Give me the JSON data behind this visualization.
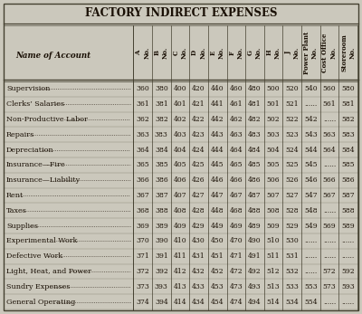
{
  "title": "FACTORY INDIRECT EXPENSES",
  "short_headers": [
    "A\nNo.",
    "B\nNo.",
    "C\nNo.",
    "D\nNo.",
    "E\nNo.",
    "F\nNo.",
    "G\nNo.",
    "H\nNo.",
    "J\nNo."
  ],
  "long_headers": [
    "Power Plant\nNo.",
    "Cost Office\nNo.",
    "Storeroom\nNo."
  ],
  "rows": [
    [
      "Supervision",
      "360",
      "380",
      "400",
      "420",
      "440",
      "460",
      "480",
      "500",
      "520",
      "540",
      "560",
      "580"
    ],
    [
      "Clerks’ Salaries",
      "361",
      "381",
      "401",
      "421",
      "441",
      "461",
      "481",
      "501",
      "521",
      "......",
      "561",
      "581"
    ],
    [
      "Non-Productive Labor",
      "362",
      "382",
      "402",
      "422",
      "442",
      "462",
      "482",
      "502",
      "522",
      "542",
      "......",
      "582"
    ],
    [
      "Repairs",
      "363",
      "383",
      "403",
      "423",
      "443",
      "463",
      "483",
      "503",
      "523",
      "543",
      "563",
      "583"
    ],
    [
      "Depreciation",
      "364",
      "384",
      "404",
      "424",
      "444",
      "464",
      "484",
      "504",
      "524",
      "544",
      "564",
      "584"
    ],
    [
      "Insurance—Fire",
      "365",
      "385",
      "405",
      "425",
      "445",
      "465",
      "485",
      "505",
      "525",
      "545",
      "......",
      "585"
    ],
    [
      "Insurance—Liability",
      "366",
      "386",
      "406",
      "426",
      "446",
      "466",
      "486",
      "506",
      "526",
      "546",
      "566",
      "586"
    ],
    [
      "Rent",
      "367",
      "387",
      "407",
      "427",
      "447",
      "467",
      "487",
      "507",
      "527",
      "547",
      "567",
      "587"
    ],
    [
      "Taxes",
      "368",
      "388",
      "408",
      "428",
      "448",
      "468",
      "488",
      "508",
      "528",
      "548",
      "......",
      "588"
    ],
    [
      "Supplies",
      "369",
      "389",
      "409",
      "429",
      "449",
      "469",
      "489",
      "509",
      "529",
      "549",
      "569",
      "589"
    ],
    [
      "Experimental Work",
      "370",
      "390",
      "410",
      "430",
      "450",
      "470",
      "490",
      "510",
      "530",
      "......",
      "......",
      "......"
    ],
    [
      "Defective Work",
      "371",
      "391",
      "411",
      "431",
      "451",
      "471",
      "491",
      "511",
      "531",
      "......",
      "......",
      "......"
    ],
    [
      "Light, Heat, and Power",
      "372",
      "392",
      "412",
      "432",
      "452",
      "472",
      "492",
      "512",
      "532",
      "......",
      "572",
      "592"
    ],
    [
      "Sundry Expenses",
      "373",
      "393",
      "413",
      "433",
      "453",
      "473",
      "493",
      "513",
      "533",
      "553",
      "573",
      "593"
    ],
    [
      "General Operating",
      "374",
      "394",
      "414",
      "434",
      "454",
      "474",
      "494",
      "514",
      "534",
      "554",
      "......",
      "......"
    ]
  ],
  "bg_color": "#cbc8bc",
  "text_color": "#1a1005",
  "border_color": "#444030",
  "title_fontsize": 8.5,
  "header_fontsize": 5.0,
  "body_fontsize": 5.5,
  "name_fontsize": 5.8
}
